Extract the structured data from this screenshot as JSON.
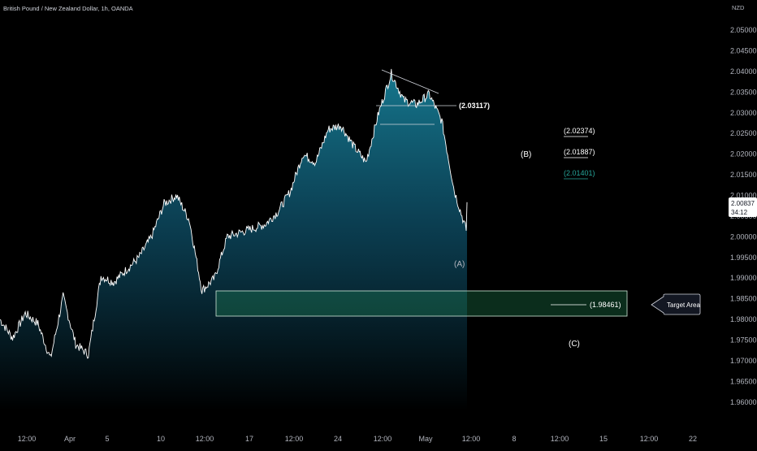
{
  "header": {
    "symbol_title": "British Pound / New Zealand Dollar, 1h, OANDA"
  },
  "price_axis": {
    "currency": "NZD",
    "ticks": [
      "2.05000",
      "2.04500",
      "2.04000",
      "2.03500",
      "2.03000",
      "2.02500",
      "2.02000",
      "2.01500",
      "2.01000",
      "2.00500",
      "2.00000",
      "1.99500",
      "1.99000",
      "1.98500",
      "1.98000",
      "1.97500",
      "1.97000",
      "1.96500",
      "1.96000"
    ],
    "current_price": "2.00837",
    "countdown": "34:12"
  },
  "time_axis": {
    "labels": [
      "12:00",
      "Apr",
      "5",
      "10",
      "12:00",
      "17",
      "12:00",
      "24",
      "12:00",
      "May",
      "12:00",
      "8",
      "12:00",
      "15",
      "12:00",
      "22"
    ]
  },
  "annotations": {
    "resistance_level": "(2.03117)",
    "level_1": "(2.02374)",
    "level_2": "(2.01887)",
    "level_3": "(2.01401)",
    "target_level": "(1.98461)",
    "wave_a": "(A)",
    "wave_b": "(B)",
    "wave_c": "(C)",
    "callout": "Target Area"
  },
  "colors": {
    "background": "#000000",
    "price_line": "#ffffff",
    "area_top": "#177e96",
    "area_bottom": "#000000",
    "target_box": "#1b5e3c",
    "level_green": "#26a69a"
  },
  "chart_data": {
    "type": "area",
    "series": [
      {
        "x": [
          "Mar 28 12:00",
          "Mar 29 12:00",
          "Mar 30 12:00",
          "Mar 31 12:00",
          "Apr 1",
          "Apr 3 12:00",
          "Apr 4",
          "Apr 5",
          "Apr 6",
          "Apr 7",
          "Apr 8",
          "Apr 9",
          "Apr 10",
          "Apr 11",
          "Apr 12",
          "Apr 13",
          "Apr 14",
          "Apr 14 12:00",
          "Apr 15",
          "Apr 16",
          "Apr 17",
          "Apr 18",
          "Apr 19",
          "Apr 20",
          "Apr 21",
          "Apr 22",
          "Apr 23",
          "Apr 24",
          "Apr 25",
          "Apr 26",
          "Apr 26 12:00",
          "Apr 27",
          "Apr 28",
          "Apr 29",
          "Apr 30",
          "May 1",
          "May 1 12:00",
          "May 2"
        ],
        "values": [
          1.98,
          1.9755,
          1.9815,
          1.979,
          1.9705,
          1.9855,
          1.974,
          1.9715,
          1.9905,
          1.989,
          1.992,
          1.995,
          2.0,
          2.008,
          2.01,
          2.004,
          1.987,
          1.99,
          2.0,
          2.001,
          2.002,
          2.003,
          2.006,
          2.011,
          2.02,
          2.018,
          2.026,
          2.027,
          2.022,
          2.018,
          2.03,
          2.0395,
          2.033,
          2.032,
          2.0345,
          2.028,
          2.011,
          2.001
        ]
      }
    ],
    "x_axis_labels": [
      "12:00",
      "Apr",
      "5",
      "10",
      "12:00",
      "17",
      "12:00",
      "24",
      "12:00",
      "May",
      "12:00",
      "8",
      "12:00",
      "15",
      "12:00",
      "22"
    ],
    "y_range": [
      1.958,
      2.051
    ],
    "levels": [
      2.03117,
      2.02374,
      2.01887,
      2.01401,
      1.98461
    ],
    "target_zone": [
      1.9818,
      1.9876
    ],
    "last_price": 2.00837,
    "grid": false
  }
}
